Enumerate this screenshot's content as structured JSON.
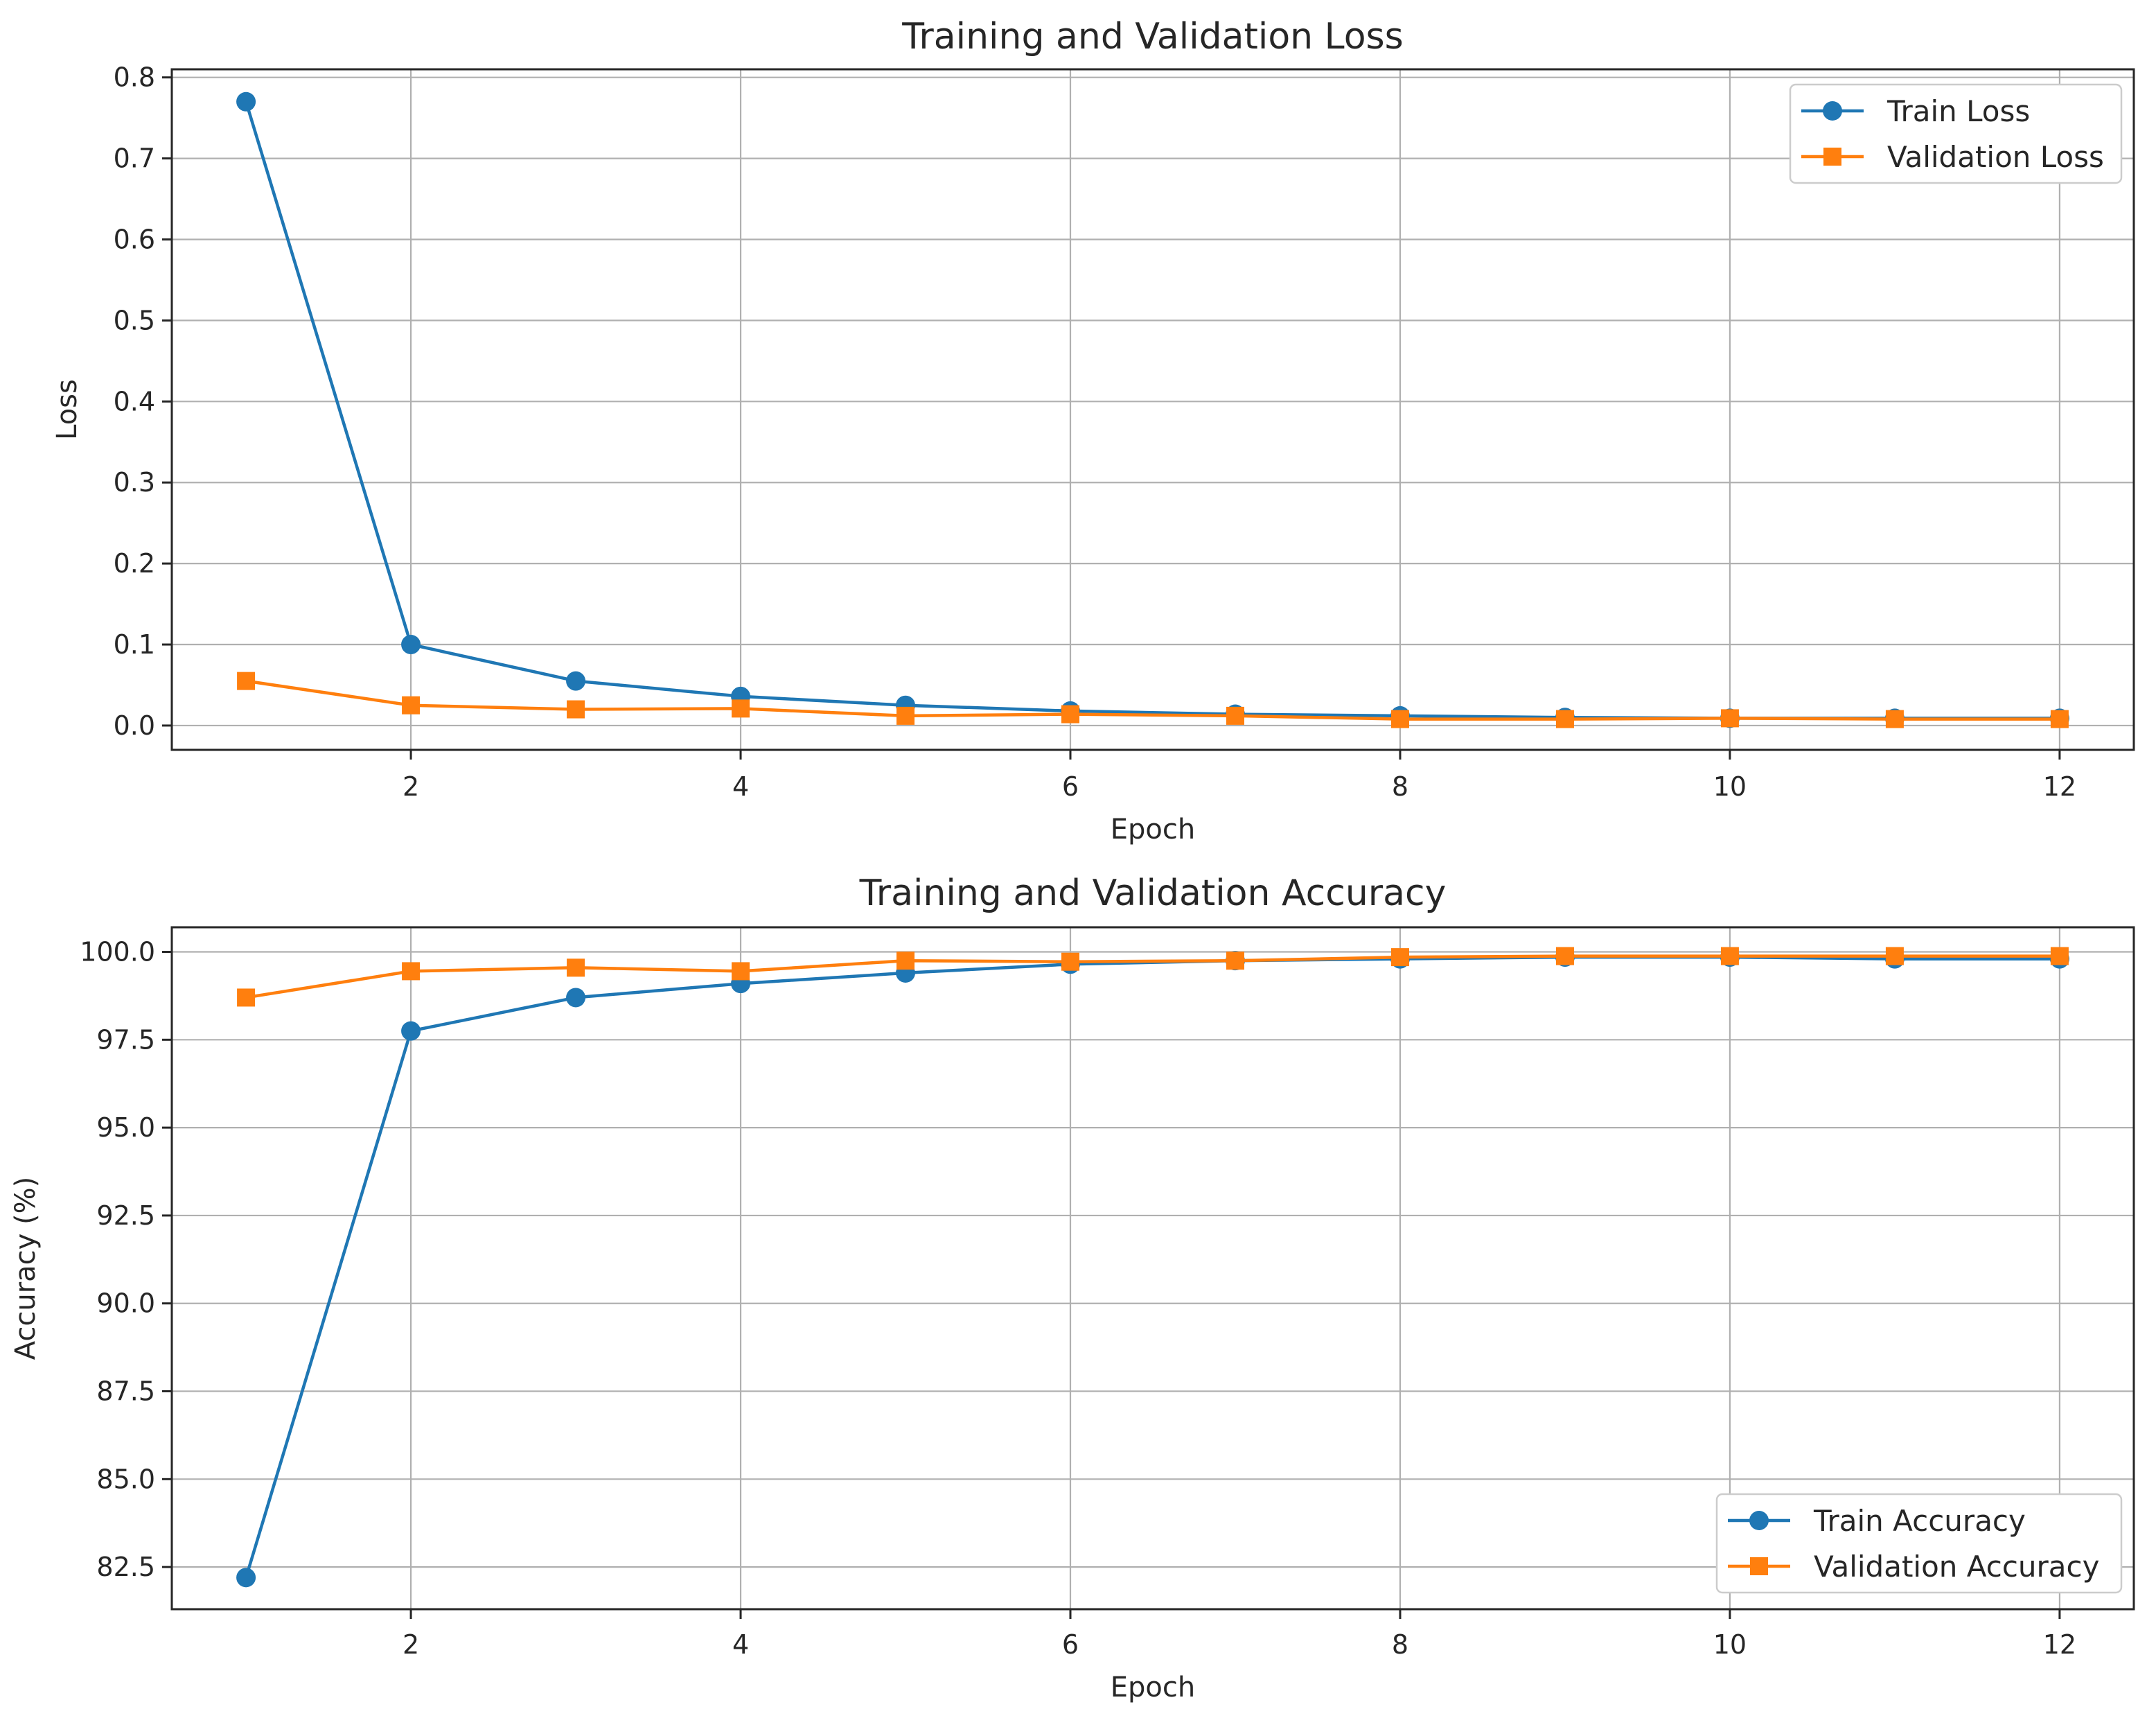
{
  "chart_data": [
    {
      "type": "line",
      "title": "Training and Validation Loss",
      "xlabel": "Epoch",
      "ylabel": "Loss",
      "xlim": [
        0.55,
        12.45
      ],
      "ylim": [
        -0.03,
        0.81
      ],
      "xticks": [
        2,
        4,
        6,
        8,
        10,
        12
      ],
      "xtick_labels": [
        "2",
        "4",
        "6",
        "8",
        "10",
        "12"
      ],
      "yticks": [
        0.0,
        0.1,
        0.2,
        0.3,
        0.4,
        0.5,
        0.6,
        0.7,
        0.8
      ],
      "ytick_labels": [
        "0.0",
        "0.1",
        "0.2",
        "0.3",
        "0.4",
        "0.5",
        "0.6",
        "0.7",
        "0.8"
      ],
      "grid": true,
      "legend_position": "top-right",
      "x": [
        1,
        2,
        3,
        4,
        5,
        6,
        7,
        8,
        9,
        10,
        11,
        12
      ],
      "series": [
        {
          "name": "Train Loss",
          "marker": "circle",
          "color": "#1f77b4",
          "values": [
            0.77,
            0.1,
            0.055,
            0.036,
            0.025,
            0.018,
            0.014,
            0.012,
            0.01,
            0.009,
            0.009,
            0.009
          ]
        },
        {
          "name": "Validation Loss",
          "marker": "square",
          "color": "#ff7f0e",
          "values": [
            0.055,
            0.025,
            0.02,
            0.021,
            0.012,
            0.014,
            0.012,
            0.008,
            0.008,
            0.009,
            0.008,
            0.008
          ]
        }
      ]
    },
    {
      "type": "line",
      "title": "Training and Validation Accuracy",
      "xlabel": "Epoch",
      "ylabel": "Accuracy (%)",
      "xlim": [
        0.55,
        12.45
      ],
      "ylim": [
        81.3,
        100.7
      ],
      "xticks": [
        2,
        4,
        6,
        8,
        10,
        12
      ],
      "xtick_labels": [
        "2",
        "4",
        "6",
        "8",
        "10",
        "12"
      ],
      "yticks": [
        82.5,
        85.0,
        87.5,
        90.0,
        92.5,
        95.0,
        97.5,
        100.0
      ],
      "ytick_labels": [
        "82.5",
        "85.0",
        "87.5",
        "90.0",
        "92.5",
        "95.0",
        "97.5",
        "100.0"
      ],
      "grid": true,
      "legend_position": "bottom-right",
      "x": [
        1,
        2,
        3,
        4,
        5,
        6,
        7,
        8,
        9,
        10,
        11,
        12
      ],
      "series": [
        {
          "name": "Train Accuracy",
          "marker": "circle",
          "color": "#1f77b4",
          "values": [
            82.2,
            97.75,
            98.7,
            99.1,
            99.4,
            99.65,
            99.75,
            99.8,
            99.85,
            99.85,
            99.8,
            99.8
          ]
        },
        {
          "name": "Validation Accuracy",
          "marker": "square",
          "color": "#ff7f0e",
          "values": [
            98.7,
            99.45,
            99.55,
            99.45,
            99.75,
            99.72,
            99.75,
            99.85,
            99.88,
            99.88,
            99.88,
            99.88
          ]
        }
      ]
    }
  ]
}
